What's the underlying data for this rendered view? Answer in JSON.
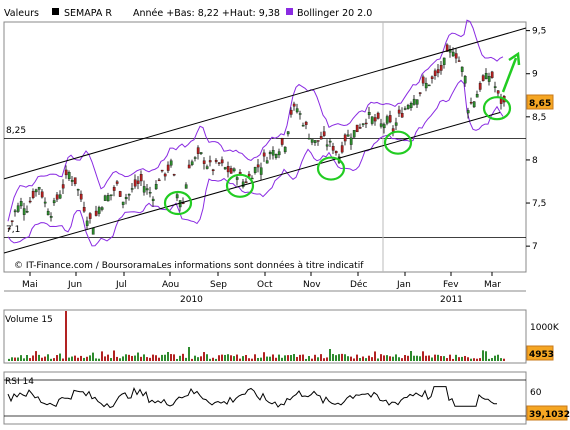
{
  "header": {
    "valeurs_label": "Valeurs",
    "ticker": "SEMAPA R",
    "year_info": "Année +Bas: 8,22 +Haut: 9,38",
    "bollinger_label": "Bollinger 20 2.0"
  },
  "colors": {
    "candle_up": "#2e8b2e",
    "candle_down": "#b22222",
    "bollinger": "#8a2be2",
    "annotation": "#22cc22",
    "price_tag": "#f5a623",
    "price_tag_border": "#c8781a"
  },
  "source_text": "© IT-Finance.com / BoursoramaLes informations sont données à titre indicatif",
  "price_tag": "8,65",
  "volume_tag": "4953",
  "rsi_tag": "39,1032",
  "support_label": "8,25",
  "low_label": "7,1",
  "volume_label": "Volume 15",
  "rsi_label": "RSI 14",
  "chart_data": [
    {
      "type": "candlestick",
      "title": "SEMAPA R",
      "x_tick_labels": [
        "Mai",
        "Jun",
        "Jul",
        "Aou",
        "Sep",
        "Oct",
        "Nov",
        "Déc",
        "Jan",
        "Fev",
        "Mar"
      ],
      "year_labels": [
        "2010",
        "2011"
      ],
      "ylim": [
        6.7,
        9.6
      ],
      "y_ticks": [
        7,
        7.5,
        8,
        8.5,
        9,
        9.5
      ],
      "y_tick_labels": [
        "7",
        "7,5",
        "8",
        "8,5",
        "9",
        "9,5"
      ],
      "horizontal_lines": [
        8.25,
        7.1
      ],
      "series": [
        {
          "name": "Bollinger 20 2.0",
          "style": "bands"
        }
      ],
      "close_path": [
        [
          0,
          7.2
        ],
        [
          6,
          7.4
        ],
        [
          12,
          7.5
        ],
        [
          18,
          7.45
        ],
        [
          24,
          7.6
        ],
        [
          30,
          7.7
        ],
        [
          36,
          7.5
        ],
        [
          42,
          7.4
        ],
        [
          48,
          7.55
        ],
        [
          54,
          7.7
        ],
        [
          60,
          7.85
        ],
        [
          66,
          7.75
        ],
        [
          72,
          7.55
        ],
        [
          78,
          7.35
        ],
        [
          84,
          7.25
        ],
        [
          90,
          7.45
        ],
        [
          96,
          7.55
        ],
        [
          102,
          7.6
        ],
        [
          108,
          7.7
        ],
        [
          114,
          7.55
        ],
        [
          120,
          7.6
        ],
        [
          126,
          7.7
        ],
        [
          132,
          7.75
        ],
        [
          138,
          7.65
        ],
        [
          144,
          7.6
        ],
        [
          150,
          7.8
        ],
        [
          156,
          7.85
        ],
        [
          162,
          7.95
        ],
        [
          168,
          7.6
        ],
        [
          174,
          7.5
        ],
        [
          180,
          7.95
        ],
        [
          186,
          8.0
        ],
        [
          192,
          8.05
        ],
        [
          198,
          7.95
        ],
        [
          204,
          7.9
        ],
        [
          210,
          7.95
        ],
        [
          216,
          7.9
        ],
        [
          222,
          7.85
        ],
        [
          228,
          7.85
        ],
        [
          234,
          7.75
        ],
        [
          240,
          7.8
        ],
        [
          246,
          7.9
        ],
        [
          252,
          7.95
        ],
        [
          258,
          8.05
        ],
        [
          264,
          8.1
        ],
        [
          270,
          8.15
        ],
        [
          276,
          8.2
        ],
        [
          282,
          8.55
        ],
        [
          288,
          8.6
        ],
        [
          294,
          8.45
        ],
        [
          300,
          8.3
        ],
        [
          306,
          8.2
        ],
        [
          312,
          8.25
        ],
        [
          318,
          8.2
        ],
        [
          324,
          8.15
        ],
        [
          330,
          8.05
        ],
        [
          336,
          8.25
        ],
        [
          342,
          8.3
        ],
        [
          348,
          8.35
        ],
        [
          354,
          8.45
        ],
        [
          360,
          8.5
        ],
        [
          366,
          8.45
        ],
        [
          372,
          8.4
        ],
        [
          378,
          8.45
        ],
        [
          384,
          8.35
        ],
        [
          390,
          8.5
        ],
        [
          396,
          8.6
        ],
        [
          402,
          8.7
        ],
        [
          408,
          8.75
        ],
        [
          414,
          8.85
        ],
        [
          420,
          8.9
        ],
        [
          426,
          8.95
        ],
        [
          432,
          9.05
        ],
        [
          438,
          9.2
        ],
        [
          444,
          9.3
        ],
        [
          450,
          9.15
        ],
        [
          456,
          8.95
        ],
        [
          459,
          8.62
        ],
        [
          465,
          8.7
        ],
        [
          471,
          8.85
        ],
        [
          477,
          8.95
        ],
        [
          482,
          9.0
        ],
        [
          486,
          8.85
        ],
        [
          490,
          8.7
        ],
        [
          495,
          8.65
        ]
      ],
      "annotation_points": [
        {
          "x": "Aou",
          "y": 7.5
        },
        {
          "x": "Sep",
          "y": 7.7
        },
        {
          "x": "Nov",
          "y": 7.9
        },
        {
          "x": "Déc",
          "y": 8.2
        },
        {
          "x": "Mar",
          "y": 8.6
        }
      ]
    },
    {
      "type": "bar",
      "title": "Volume 15",
      "ylim": [
        0,
        1000000
      ],
      "y_tick_labels": [
        "1000K"
      ],
      "last_value": 4953
    },
    {
      "type": "line",
      "title": "RSI 14",
      "ylim": [
        0,
        100
      ],
      "y_tick_labels": [
        "60"
      ],
      "horizontal_lines": [
        70,
        30
      ],
      "last_value": 39.1032
    }
  ]
}
